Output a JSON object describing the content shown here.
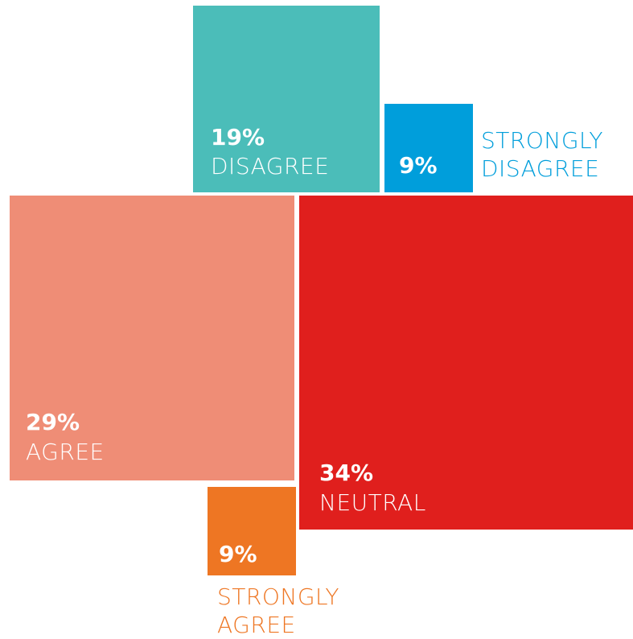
{
  "chart_data": {
    "type": "square-area",
    "categories": [
      "DISAGREE",
      "STRONGLY DISAGREE",
      "AGREE",
      "NEUTRAL",
      "STRONGLY AGREE"
    ],
    "values": [
      19,
      9,
      29,
      34,
      9
    ],
    "value_labels": [
      "19%",
      "9%",
      "29%",
      "34%",
      "9%"
    ],
    "colors": [
      "#4bbdb9",
      "#009edb",
      "#ef8d76",
      "#e01f1d",
      "#ee7623"
    ]
  }
}
